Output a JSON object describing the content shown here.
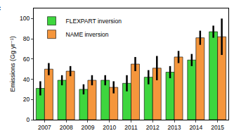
{
  "chart_data": {
    "type": "bar",
    "y_label": "Emissions (Gg yr⁻¹)",
    "annotations": [
      "c"
    ],
    "categories": [
      "2007",
      "2008",
      "2009",
      "2010",
      "2011",
      "2012",
      "2013",
      "2014",
      "2015"
    ],
    "series": [
      {
        "name": "FLEXPART inversion",
        "color": "#3ed63e",
        "values": [
          31,
          39,
          30,
          39,
          36,
          42,
          47,
          59,
          87
        ],
        "errors": [
          7,
          5,
          5,
          5,
          8,
          7,
          6,
          6,
          6
        ]
      },
      {
        "name": "NAME inversion",
        "color": "#f5963c",
        "values": [
          50,
          48,
          39,
          32,
          55,
          51,
          62,
          81,
          82
        ],
        "errors": [
          6,
          5,
          5,
          6,
          7,
          12,
          6,
          7,
          18
        ]
      }
    ],
    "ylim": [
      0,
      110
    ],
    "yticks": [
      0,
      20,
      40,
      60,
      80,
      100
    ],
    "grid": false,
    "legend": "upper left"
  }
}
